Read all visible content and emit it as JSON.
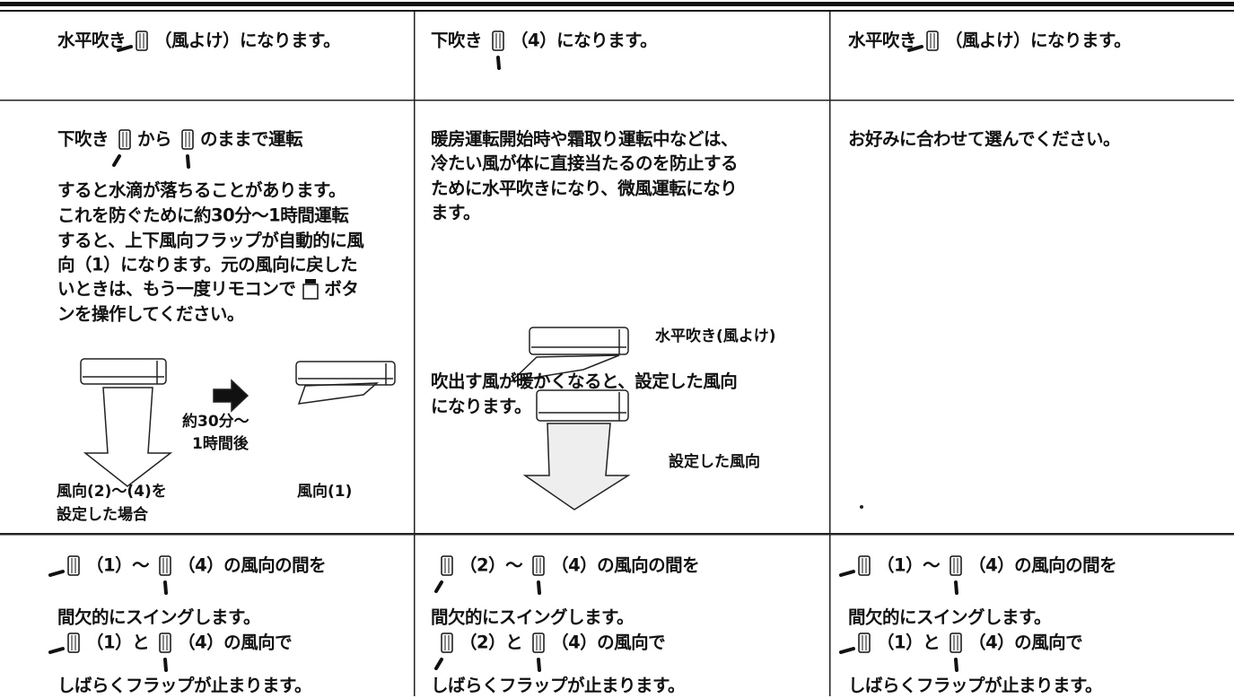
{
  "table": {
    "rows": [
      [
        {
          "lines": [
            [
              "水平吹き",
              "（風よけ）になります。"
            ]
          ]
        },
        {
          "lines": [
            [
              "下吹き",
              "（4）になります。"
            ]
          ]
        },
        {
          "lines": [
            [
              "水平吹き",
              "（風よけ）になります。"
            ]
          ]
        }
      ],
      [
        {
          "lines": [
            [
              "下吹き",
              "から",
              "のままで運転"
            ],
            [
              "すると水滴が落ちることがあります。"
            ],
            [
              "これを防ぐために約30分～1時間運転"
            ],
            [
              "すると、上下風向フラップが自動的に風"
            ],
            [
              "向（1）になります。元の風向に戻した"
            ],
            [
              "いときは、もう一度リモコンで",
              "ボタ"
            ],
            [
              "ンを操作してください。"
            ]
          ],
          "figure": {
            "interval": [
              "約30分～",
              "1時間後"
            ],
            "before": [
              "風向(2)～(4)を",
              "設定した場合"
            ],
            "after": "風向(1)"
          }
        },
        {
          "lines": [
            [
              "暖房運転開始時や霜取り運転中などは、"
            ],
            [
              "冷たい風が体に直接当たるのを防止する"
            ],
            [
              "ために水平吹きになり、微風運転になり"
            ],
            [
              "ます。"
            ],
            [
              "吹出す風が暖かくなると、設定した風向"
            ],
            [
              "になります。"
            ]
          ],
          "figure": {
            "first": "水平吹き(風よけ)",
            "second": "設定した風向"
          }
        },
        {
          "lines": [
            [
              "お好みに合わせて選んでください。"
            ]
          ]
        }
      ],
      [
        {
          "lines": [
            [
              "（1）～",
              "（4）の風向の間を"
            ],
            [
              "間欠的にスイングします。"
            ],
            [
              "（1）と",
              "（4）の風向で"
            ],
            [
              "しばらくフラップが止まります。"
            ]
          ]
        },
        {
          "lines": [
            [
              "（2）～",
              "（4）の風向の間を"
            ],
            [
              "間欠的にスイングします。"
            ],
            [
              "（2）と",
              "（4）の風向で"
            ],
            [
              "しばらくフラップが止まります。"
            ]
          ]
        },
        {
          "lines": [
            [
              "（1）～",
              "（4）の風向の間を"
            ],
            [
              "間欠的にスイングします。"
            ],
            [
              "（1）と",
              "（4）の風向で"
            ],
            [
              "しばらくフラップが止まります。"
            ]
          ]
        }
      ]
    ]
  }
}
